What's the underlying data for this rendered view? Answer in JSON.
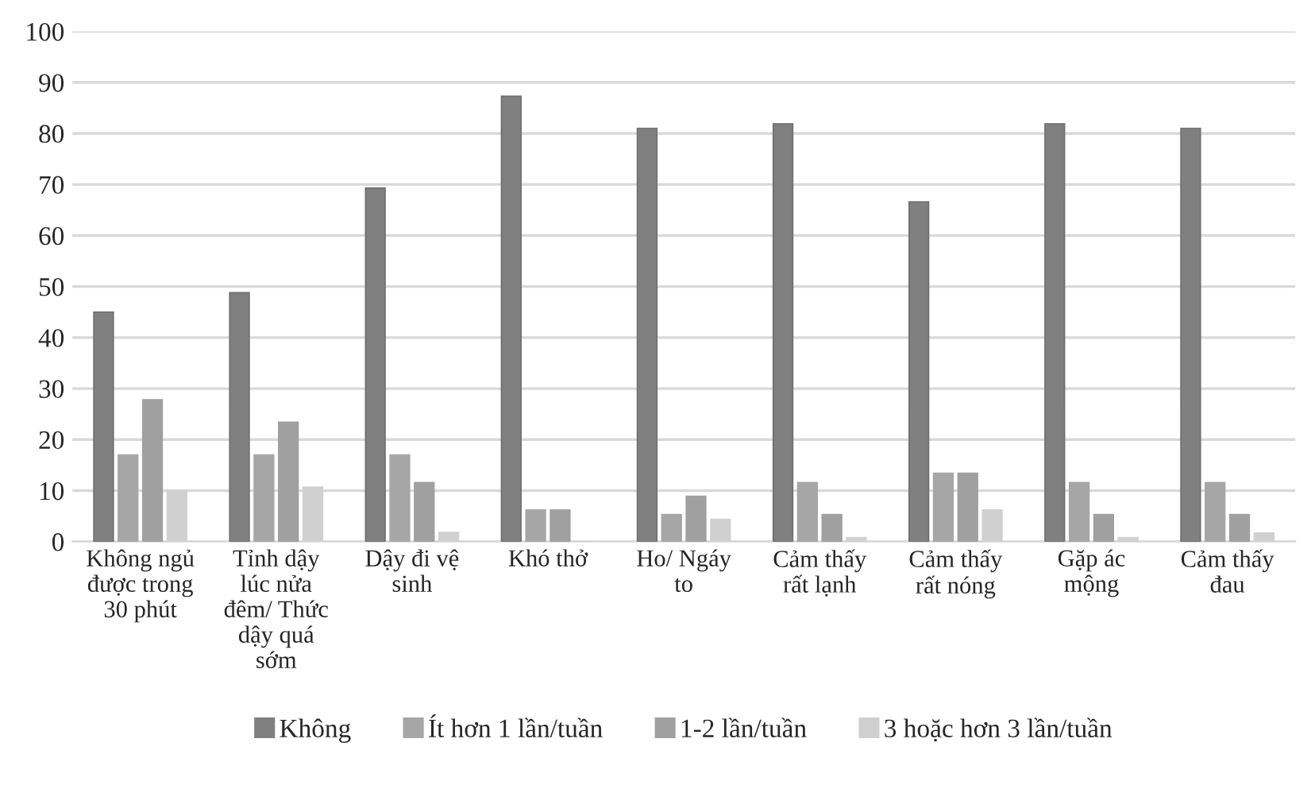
{
  "chart_data": {
    "type": "bar",
    "categories": [
      "Không ngủ\nđược trong\n30 phút",
      "Tỉnh dậy\nlúc nửa\nđêm/ Thức\ndậy quá\nsớm",
      "Dậy đi vệ\nsinh",
      "Khó thở",
      "Ho/ Ngáy\nto",
      "Cảm thấy\nrất lạnh",
      "Cảm thấy\nrất nóng",
      "Gặp ác\nmộng",
      "Cảm thấy\nđau"
    ],
    "series": [
      {
        "name": "Không",
        "color": "#808080",
        "values": [
          45,
          48.8,
          69.3,
          87.3,
          81,
          81.9,
          66.6,
          81.9,
          81
        ]
      },
      {
        "name": "Ít hơn 1 lần/tuần",
        "color": "#a6a6a6",
        "values": [
          17,
          17,
          17,
          6.2,
          5.3,
          11.6,
          13.4,
          11.6,
          11.6
        ]
      },
      {
        "name": "1-2 lần/tuần",
        "color": "#a0a0a0",
        "values": [
          27.8,
          23.4,
          11.6,
          6.2,
          8.9,
          5.3,
          13.4,
          5.3,
          5.3
        ]
      },
      {
        "name": "3 hoặc hơn 3 lần/tuần",
        "color": "#d0d0d0",
        "values": [
          10,
          10.7,
          1.8,
          0,
          4.4,
          0.8,
          6.2,
          0.8,
          1.7
        ]
      }
    ],
    "ylim": [
      0,
      100
    ],
    "yticks": [
      0,
      10,
      20,
      30,
      40,
      50,
      60,
      70,
      80,
      90,
      100
    ],
    "grid": "y",
    "legend": "bottom"
  }
}
